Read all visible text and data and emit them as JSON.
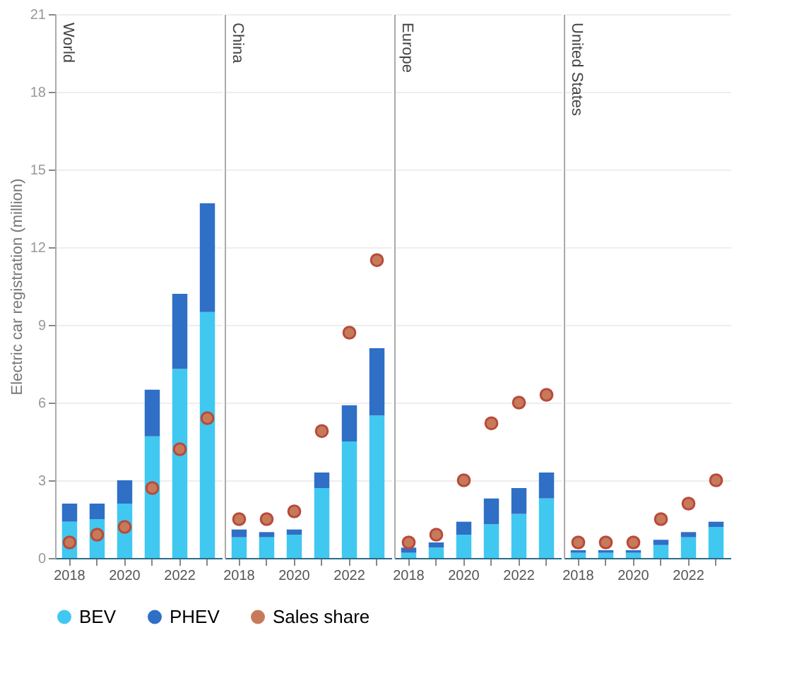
{
  "chart_data": [
    {
      "type": "bar",
      "title": "World",
      "ylabel": "Electric car registration (million)",
      "stacked": true,
      "legend": "bottom",
      "grid": "y",
      "marker": "circle",
      "categories": [
        "2018",
        null,
        "2020",
        null,
        "2022",
        null
      ],
      "ylim": [
        0,
        21
      ],
      "yticks": [
        0,
        3,
        6,
        9,
        12,
        15,
        18,
        21
      ],
      "series": [
        {
          "name": "BEV",
          "color": "#40c8f0",
          "values": [
            1.4,
            1.5,
            2.1,
            4.7,
            7.3,
            9.5
          ]
        },
        {
          "name": "PHEV",
          "color": "#2f6fc6",
          "values": [
            0.7,
            0.6,
            0.9,
            1.8,
            2.9,
            4.2
          ]
        },
        {
          "name": "Sales share",
          "type": "scatter",
          "color": "#c77a5a",
          "values": [
            0.6,
            0.9,
            1.2,
            2.7,
            4.2,
            5.4
          ]
        }
      ]
    },
    {
      "type": "bar",
      "title": "China",
      "stacked": true,
      "grid": "y",
      "marker": "circle",
      "tick_labels": "x",
      "categories": [
        "2018",
        null,
        "2020",
        null,
        "2022",
        null
      ],
      "ylim": [
        0,
        21
      ],
      "yticks": [
        0,
        3,
        6,
        9,
        12,
        15,
        18,
        21
      ],
      "series": [
        {
          "color": "#40c8f0",
          "values": [
            0.8,
            0.8,
            0.9,
            2.7,
            4.5,
            5.5
          ]
        },
        {
          "color": "#2f6fc6",
          "values": [
            0.3,
            0.2,
            0.2,
            0.6,
            1.4,
            2.6
          ]
        },
        {
          "type": "scatter",
          "color": "#c77a5a",
          "values": [
            1.5,
            1.5,
            1.8,
            4.9,
            8.7,
            11.5
          ]
        }
      ]
    },
    {
      "type": "bar",
      "title": "Europe",
      "stacked": true,
      "grid": "y",
      "marker": "circle",
      "tick_labels": "x",
      "categories": [
        "2018",
        null,
        "2020",
        null,
        "2022",
        null
      ],
      "ylim": [
        0,
        21
      ],
      "yticks": [
        0,
        3,
        6,
        9,
        12,
        15,
        18,
        21
      ],
      "series": [
        {
          "color": "#40c8f0",
          "values": [
            0.2,
            0.4,
            0.9,
            1.3,
            1.7,
            2.3
          ]
        },
        {
          "color": "#2f6fc6",
          "values": [
            0.2,
            0.2,
            0.5,
            1.0,
            1.0,
            1.0
          ]
        },
        {
          "type": "scatter",
          "color": "#c77a5a",
          "values": [
            0.6,
            0.9,
            3.0,
            5.2,
            6.0,
            6.3
          ]
        }
      ]
    },
    {
      "type": "bar",
      "title": "United States",
      "stacked": true,
      "grid": "y",
      "marker": "circle",
      "tick_labels": "x",
      "categories": [
        "2018",
        null,
        "2020",
        null,
        "2022",
        null
      ],
      "ylim": [
        0,
        21
      ],
      "yticks": [
        0,
        3,
        6,
        9,
        12,
        15,
        18,
        21
      ],
      "series": [
        {
          "color": "#40c8f0",
          "values": [
            0.2,
            0.2,
            0.2,
            0.5,
            0.8,
            1.2
          ]
        },
        {
          "color": "#2f6fc6",
          "values": [
            0.1,
            0.1,
            0.1,
            0.2,
            0.2,
            0.2
          ]
        },
        {
          "type": "scatter",
          "color": "#c77a5a",
          "values": [
            0.6,
            0.6,
            0.6,
            1.5,
            2.1,
            3.0
          ]
        }
      ]
    }
  ]
}
